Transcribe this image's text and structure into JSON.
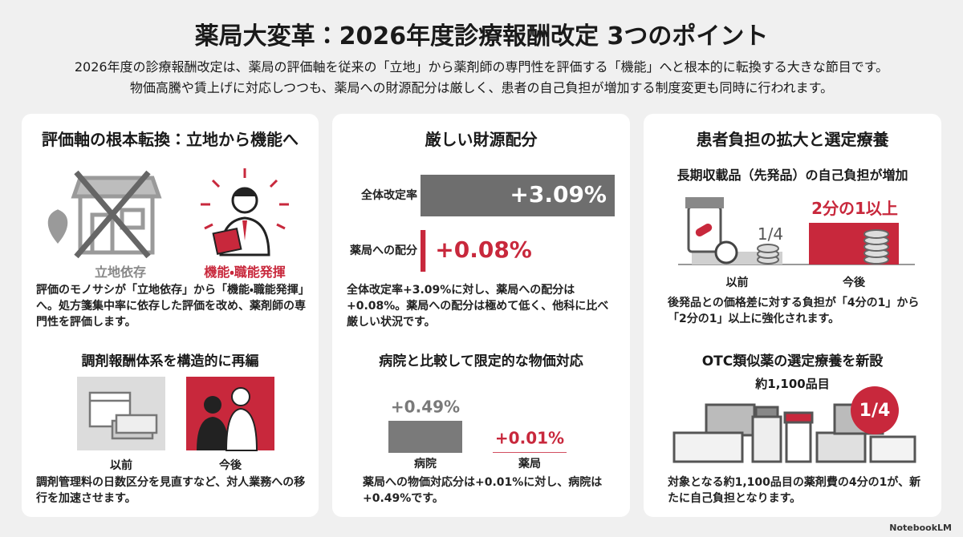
{
  "header": {
    "title": "薬局大変革：2026年度診療報酬改定 3つのポイント",
    "description": [
      "2026年度の診療報酬改定は、薬局の評価軸を従来の「立地」から薬剤師の専門性を評価する「機能」へと根本的に転換する大きな節目です。",
      "物価高騰や賃上げに対応しつつも、薬局への財源配分は厳しく、患者の自己負担が増加する制度変更も同時に行われます。"
    ]
  },
  "panels": [
    {
      "title": "評価軸の根本転換：立地から機能へ",
      "icon_labels": [
        "立地依存",
        "機能・職能発揮"
      ],
      "text": "評価のモノサシが「立地依存」から「機能・職能発揮」へ。処方箋集中率に依存した評価を改め、薬剤師の専門性を評価します。",
      "subtitle": "調剤報酬体系を構造的に再編",
      "compare_labels": [
        "以前",
        "今後"
      ],
      "text2": "調剤管理料の日数区分を見直すなど、対人業務への移行を加速させます。"
    },
    {
      "title": "厳しい財源配分",
      "text": "全体改定率+3.09%に対し、薬局への配分は+0.08%。薬局への配分は極めて低く、他科に比べ厳しい状況です。",
      "subtitle": "病院と比較して限定的な物価対応",
      "text2": "薬局への物価対応分は+0.01%に対し、病院は+0.49%です。"
    },
    {
      "title": "患者負担の拡大と選定療養",
      "subtitle": "長期収載品（先発品）の自己負担が増加",
      "before_share": "1/4",
      "after_share": "2分の1以上",
      "compare_labels": [
        "以前",
        "今後"
      ],
      "text": "後発品との価格差に対する負担が「4分の1」から「2分の1」以上に強化されます。",
      "subtitle2": "OTC類似薬の選定療養を新設",
      "item_count": "約1,100品目",
      "badge": "1/4",
      "text2": "対象となる約1,100品目の薬剤費の4分の1が、新たに自己負担となります。"
    }
  ],
  "chart_data": [
    {
      "type": "bar",
      "orientation": "horizontal",
      "categories": [
        "全体改定率",
        "薬局への配分"
      ],
      "values": [
        3.09,
        0.08
      ],
      "value_labels": [
        "+3.09%",
        "+0.08%"
      ],
      "colors": [
        "#6e6e6e",
        "#c8283c"
      ]
    },
    {
      "type": "bar",
      "orientation": "vertical",
      "categories": [
        "病院",
        "薬局"
      ],
      "values": [
        0.49,
        0.01
      ],
      "value_labels": [
        "+0.49%",
        "+0.01%"
      ],
      "colors": [
        "#7a7a7a",
        "#c8283c"
      ]
    }
  ],
  "footer": "NotebookLM"
}
